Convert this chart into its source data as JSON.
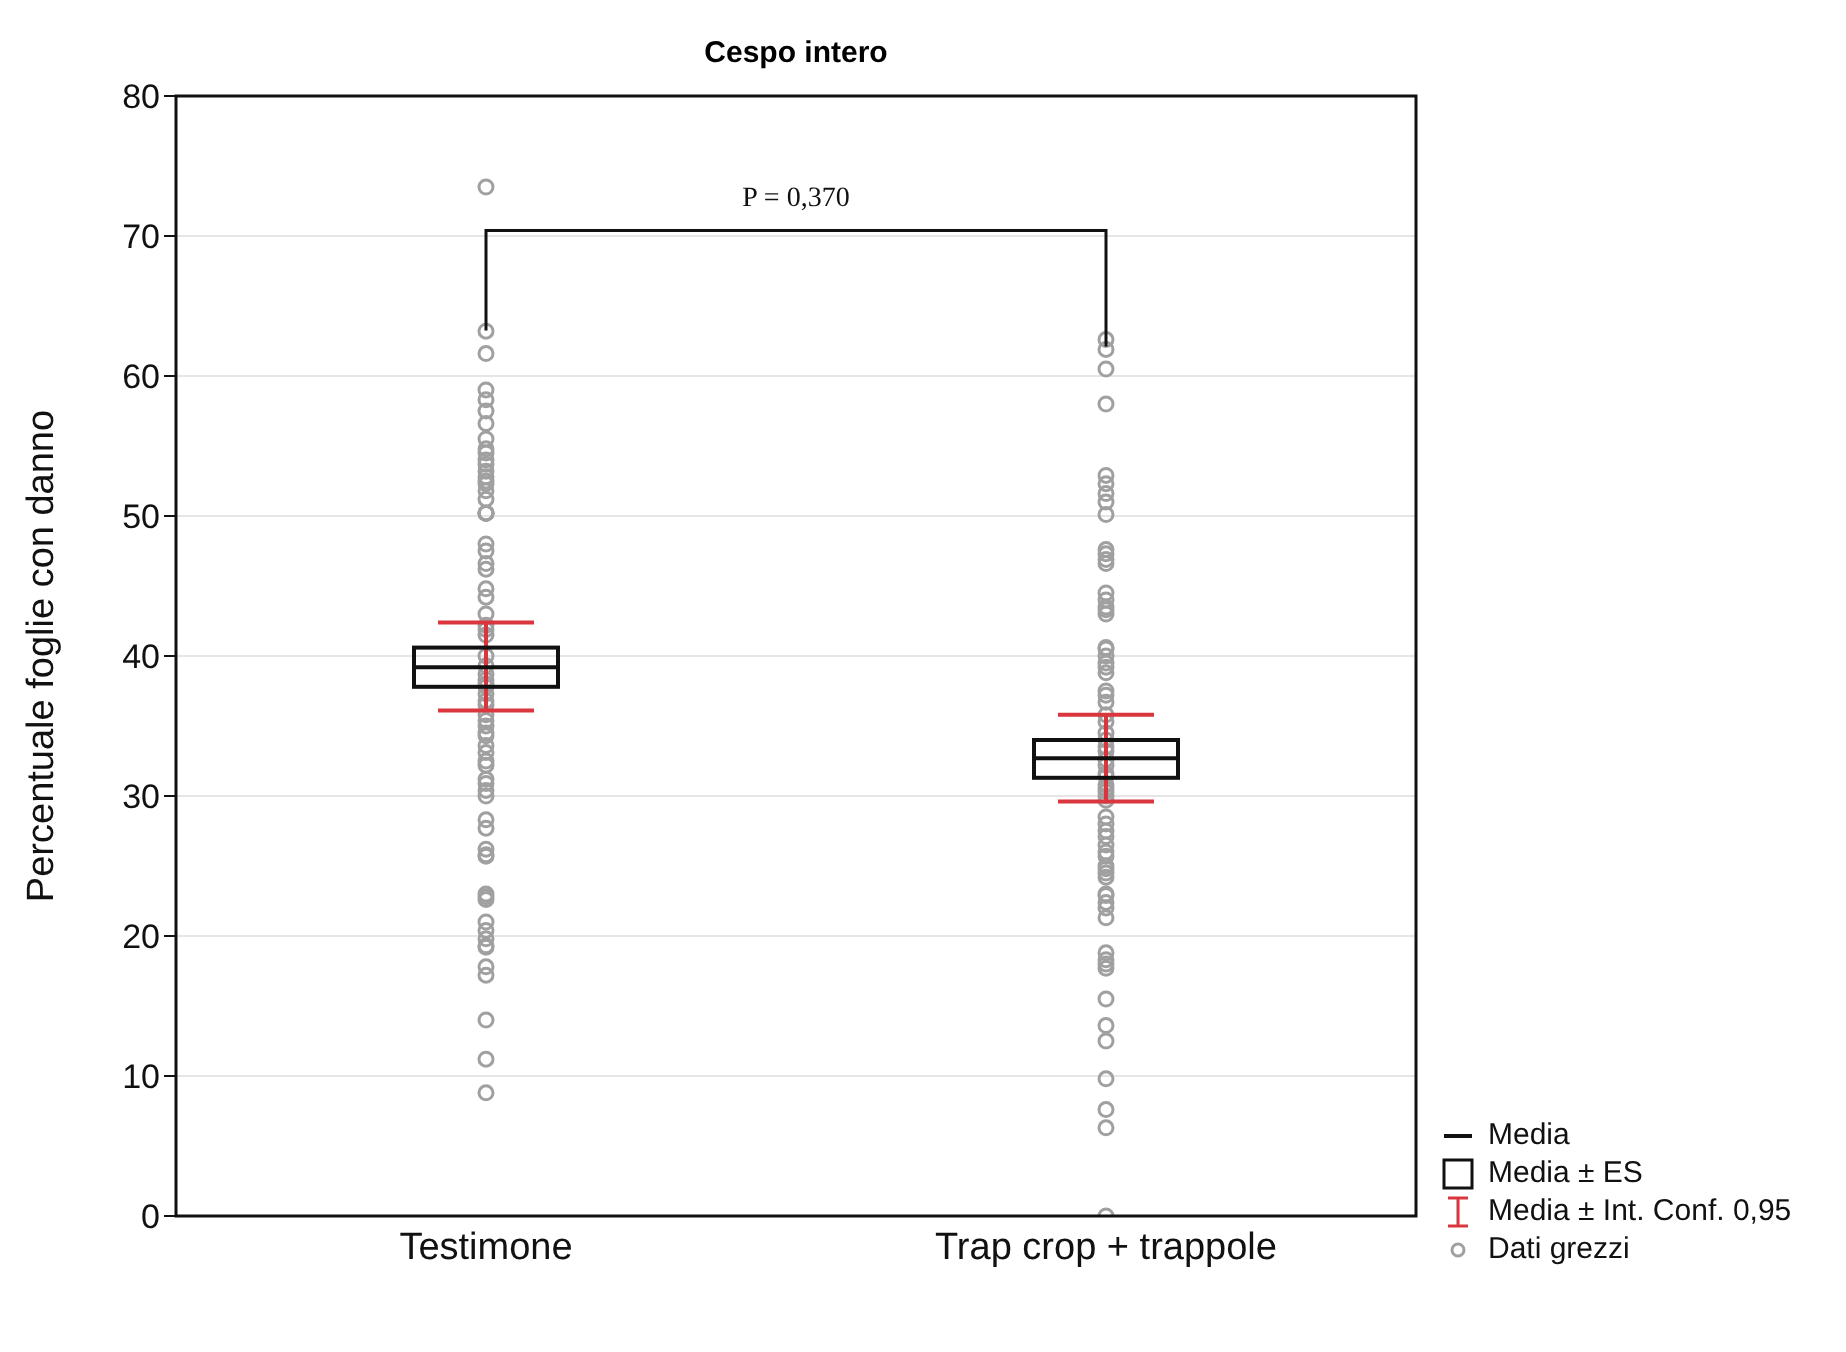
{
  "chart_data": {
    "type": "box",
    "title": "Cespo intero",
    "ylabel": "Percentuale foglie con danno",
    "categories": [
      "Testimone",
      "Trap crop + trappole"
    ],
    "boxes": [
      {
        "low": 36.1,
        "q1": 37.8,
        "median": 39.2,
        "q3": 40.6,
        "high": 42.4
      },
      {
        "low": 29.6,
        "q1": 31.3,
        "median": 32.7,
        "q3": 34.0,
        "high": 35.8
      }
    ],
    "series": [
      {
        "type": "scatter",
        "name": "Dati grezzi",
        "color": "#a0a0a0",
        "x": [
          "Testimone",
          "Testimone",
          "Testimone",
          "Testimone",
          "Testimone",
          "Testimone",
          "Testimone",
          "Testimone",
          "Testimone",
          "Testimone",
          "Testimone",
          "Testimone",
          "Testimone",
          "Testimone",
          "Testimone",
          "Testimone",
          "Testimone",
          "Testimone",
          "Testimone",
          "Testimone",
          "Testimone",
          "Testimone",
          "Testimone",
          "Testimone",
          "Testimone",
          "Testimone",
          "Testimone",
          "Testimone",
          "Testimone",
          "Testimone",
          "Testimone",
          "Testimone",
          "Testimone",
          "Testimone",
          "Testimone",
          "Testimone",
          "Testimone",
          "Testimone",
          "Testimone",
          "Testimone",
          "Testimone",
          "Testimone",
          "Testimone",
          "Testimone",
          "Testimone",
          "Testimone",
          "Testimone",
          "Testimone",
          "Testimone",
          "Testimone",
          "Testimone",
          "Testimone",
          "Testimone",
          "Testimone",
          "Testimone",
          "Testimone",
          "Testimone",
          "Testimone",
          "Testimone",
          "Testimone",
          "Testimone",
          "Testimone",
          "Testimone",
          "Testimone",
          "Testimone",
          "Testimone",
          "Testimone",
          "Testimone",
          "Testimone",
          "Testimone",
          "Testimone",
          "Testimone",
          "Trap crop + trappole",
          "Trap crop + trappole",
          "Trap crop + trappole",
          "Trap crop + trappole",
          "Trap crop + trappole",
          "Trap crop + trappole",
          "Trap crop + trappole",
          "Trap crop + trappole",
          "Trap crop + trappole",
          "Trap crop + trappole",
          "Trap crop + trappole",
          "Trap crop + trappole",
          "Trap crop + trappole",
          "Trap crop + trappole",
          "Trap crop + trappole",
          "Trap crop + trappole",
          "Trap crop + trappole",
          "Trap crop + trappole",
          "Trap crop + trappole",
          "Trap crop + trappole",
          "Trap crop + trappole",
          "Trap crop + trappole",
          "Trap crop + trappole",
          "Trap crop + trappole",
          "Trap crop + trappole",
          "Trap crop + trappole",
          "Trap crop + trappole",
          "Trap crop + trappole",
          "Trap crop + trappole",
          "Trap crop + trappole",
          "Trap crop + trappole",
          "Trap crop + trappole",
          "Trap crop + trappole",
          "Trap crop + trappole",
          "Trap crop + trappole",
          "Trap crop + trappole",
          "Trap crop + trappole",
          "Trap crop + trappole",
          "Trap crop + trappole",
          "Trap crop + trappole",
          "Trap crop + trappole",
          "Trap crop + trappole",
          "Trap crop + trappole",
          "Trap crop + trappole",
          "Trap crop + trappole",
          "Trap crop + trappole",
          "Trap crop + trappole",
          "Trap crop + trappole",
          "Trap crop + trappole",
          "Trap crop + trappole",
          "Trap crop + trappole",
          "Trap crop + trappole",
          "Trap crop + trappole",
          "Trap crop + trappole",
          "Trap crop + trappole",
          "Trap crop + trappole",
          "Trap crop + trappole",
          "Trap crop + trappole",
          "Trap crop + trappole",
          "Trap crop + trappole",
          "Trap crop + trappole",
          "Trap crop + trappole",
          "Trap crop + trappole",
          "Trap crop + trappole",
          "Trap crop + trappole",
          "Trap crop + trappole",
          "Trap crop + trappole",
          "Trap crop + trappole",
          "Trap crop + trappole"
        ],
        "values": [
          73.5,
          63.2,
          61.6,
          59,
          58.3,
          57.5,
          56.6,
          55.5,
          54.8,
          54.5,
          54,
          53.7,
          53.2,
          52.8,
          52.5,
          52.3,
          51.8,
          51.2,
          50.2,
          50.2,
          50.2,
          50.2,
          48,
          47.5,
          46.6,
          46.2,
          44.8,
          44.2,
          43,
          42.2,
          41.9,
          41.5,
          40,
          39.3,
          38.7,
          38.3,
          38,
          37.8,
          37.3,
          36.8,
          36.5,
          35.8,
          35.4,
          35,
          34.5,
          34.3,
          33.6,
          33.1,
          32.5,
          32.2,
          31.2,
          30.9,
          30.4,
          30,
          28.3,
          27.7,
          26.2,
          25.8,
          25.7,
          23,
          22.8,
          22.6,
          21,
          20.4,
          19.8,
          19.3,
          19.2,
          17.8,
          17.2,
          14,
          11.2,
          8.8,
          62.6,
          61.9,
          60.5,
          58,
          52.9,
          52.3,
          51.6,
          51,
          50.1,
          47.6,
          47.3,
          46.9,
          46.6,
          44.5,
          44,
          43.5,
          43.3,
          43,
          40.6,
          40.5,
          40,
          39.5,
          39.2,
          38.8,
          37.5,
          37.2,
          36.7,
          35.8,
          35.3,
          34.5,
          34,
          33.5,
          33.2,
          32.6,
          32.2,
          31.6,
          31.4,
          30.8,
          30.5,
          30.3,
          30,
          29.7,
          28.5,
          28,
          27.5,
          27.1,
          26.5,
          26,
          25.7,
          25,
          24.8,
          24.5,
          24.2,
          23,
          22.9,
          22.4,
          22,
          21.3,
          18.8,
          18.3,
          18,
          17.7,
          15.5,
          13.6,
          12.5,
          9.8,
          7.6,
          6.3,
          0
        ]
      }
    ],
    "ylim": [
      0,
      80
    ],
    "yticks": [
      0,
      10,
      20,
      30,
      40,
      50,
      60,
      70,
      80
    ],
    "grid": "y",
    "legend": "bottom right",
    "marker": "circle",
    "annotations": [
      "P = 0,370",
      "Media",
      "Media ± ES",
      "Media ± Int. Conf. 0,95"
    ]
  }
}
